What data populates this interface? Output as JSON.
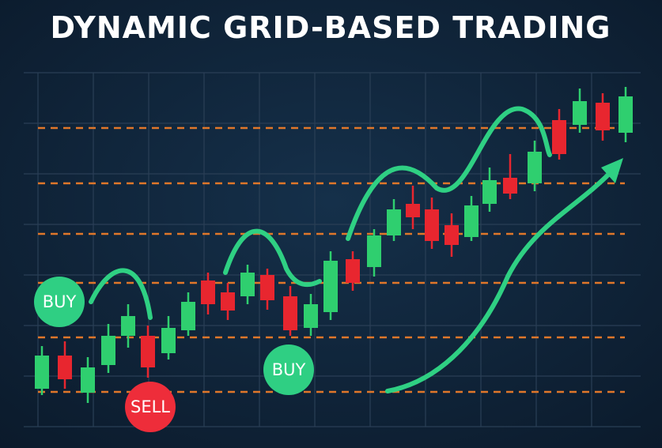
{
  "title": "DYNAMIC GRID-BASED TRADING",
  "labels": {
    "buy_left": "BUY",
    "buy_center": "BUY",
    "sell": "SELL"
  }
}
